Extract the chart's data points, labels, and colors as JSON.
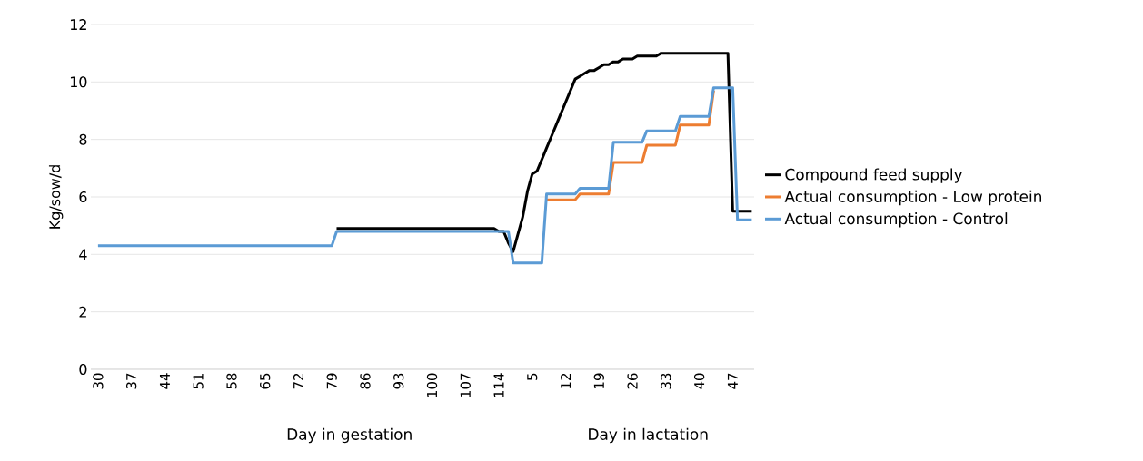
{
  "chart_data": {
    "type": "line",
    "ylabel": "Kg/sow/d",
    "annotations": [
      "Day in gestation",
      "Day in lactation"
    ],
    "categories": [
      "30",
      null,
      null,
      null,
      null,
      null,
      null,
      "37",
      null,
      null,
      null,
      null,
      null,
      null,
      "44",
      null,
      null,
      null,
      null,
      null,
      null,
      "51",
      null,
      null,
      null,
      null,
      null,
      null,
      "58",
      null,
      null,
      null,
      null,
      null,
      null,
      "65",
      null,
      null,
      null,
      null,
      null,
      null,
      "72",
      null,
      null,
      null,
      null,
      null,
      null,
      "79",
      null,
      null,
      null,
      null,
      null,
      null,
      "86",
      null,
      null,
      null,
      null,
      null,
      null,
      "93",
      null,
      null,
      null,
      null,
      null,
      null,
      "100",
      null,
      null,
      null,
      null,
      null,
      null,
      "107",
      null,
      null,
      null,
      null,
      null,
      null,
      "114",
      null,
      null,
      null,
      null,
      null,
      null,
      "5",
      null,
      null,
      null,
      null,
      null,
      null,
      "12",
      null,
      null,
      null,
      null,
      null,
      null,
      "19",
      null,
      null,
      null,
      null,
      null,
      null,
      "26",
      null,
      null,
      null,
      null,
      null,
      null,
      "33",
      null,
      null,
      null,
      null,
      null,
      null,
      "40",
      null,
      null,
      null,
      null,
      null,
      null,
      "47",
      null,
      null,
      null,
      null
    ],
    "ylim": [
      0,
      12
    ],
    "yticks": [
      0,
      2,
      4,
      6,
      8,
      10,
      12
    ],
    "grid": "y",
    "legend": "right",
    "series": [
      {
        "name": "Compound feed supply",
        "color": "#000000",
        "values": [
          null,
          null,
          null,
          null,
          null,
          null,
          null,
          null,
          null,
          null,
          null,
          null,
          null,
          null,
          null,
          null,
          null,
          null,
          null,
          null,
          null,
          null,
          null,
          null,
          null,
          null,
          null,
          null,
          null,
          null,
          null,
          null,
          null,
          null,
          null,
          null,
          null,
          null,
          null,
          null,
          null,
          null,
          null,
          null,
          null,
          null,
          null,
          null,
          null,
          null,
          4.9,
          4.9,
          4.9,
          4.9,
          4.9,
          4.9,
          4.9,
          4.9,
          4.9,
          4.9,
          4.9,
          4.9,
          4.9,
          4.9,
          4.9,
          4.9,
          4.9,
          4.9,
          4.9,
          4.9,
          4.9,
          4.9,
          4.9,
          4.9,
          4.9,
          4.9,
          4.9,
          4.9,
          4.9,
          4.9,
          4.9,
          4.9,
          4.9,
          4.9,
          4.8,
          4.8,
          4.4,
          4.1,
          4.7,
          5.3,
          6.2,
          6.8,
          6.9,
          7.3,
          7.7,
          8.1,
          8.5,
          8.9,
          9.3,
          9.7,
          10.1,
          10.2,
          10.3,
          10.4,
          10.4,
          10.5,
          10.6,
          10.6,
          10.7,
          10.7,
          10.8,
          10.8,
          10.8,
          10.9,
          10.9,
          10.9,
          10.9,
          10.9,
          11.0,
          11.0,
          11.0,
          11.0,
          11.0,
          11.0,
          11.0,
          11.0,
          11.0,
          11.0,
          11.0,
          11.0,
          11.0,
          11.0,
          11.0,
          5.5,
          5.5,
          5.5,
          5.5,
          5.5
        ]
      },
      {
        "name": "Actual consumption - Low protein",
        "color": "#ed7d31",
        "values": [
          null,
          null,
          null,
          null,
          null,
          null,
          null,
          null,
          null,
          null,
          null,
          null,
          null,
          null,
          null,
          null,
          null,
          null,
          null,
          null,
          null,
          null,
          null,
          null,
          null,
          null,
          null,
          null,
          null,
          null,
          null,
          null,
          null,
          null,
          null,
          null,
          null,
          null,
          null,
          null,
          null,
          null,
          null,
          null,
          null,
          null,
          null,
          null,
          null,
          null,
          null,
          null,
          null,
          null,
          null,
          null,
          null,
          null,
          null,
          null,
          null,
          null,
          null,
          null,
          null,
          null,
          null,
          null,
          null,
          null,
          null,
          null,
          null,
          null,
          null,
          null,
          null,
          null,
          null,
          null,
          null,
          null,
          null,
          null,
          null,
          null,
          null,
          null,
          null,
          null,
          null,
          null,
          null,
          null,
          5.9,
          5.9,
          5.9,
          5.9,
          5.9,
          5.9,
          5.9,
          6.1,
          6.1,
          6.1,
          6.1,
          6.1,
          6.1,
          6.1,
          7.2,
          7.2,
          7.2,
          7.2,
          7.2,
          7.2,
          7.2,
          7.8,
          7.8,
          7.8,
          7.8,
          7.8,
          7.8,
          7.8,
          8.5,
          8.5,
          8.5,
          8.5,
          8.5,
          8.5,
          8.5,
          9.7,
          null,
          null,
          null,
          null,
          null,
          null,
          null,
          null
        ]
      },
      {
        "name": "Actual consumption - Control",
        "color": "#5b9bd5",
        "values": [
          4.3,
          4.3,
          4.3,
          4.3,
          4.3,
          4.3,
          4.3,
          4.3,
          4.3,
          4.3,
          4.3,
          4.3,
          4.3,
          4.3,
          4.3,
          4.3,
          4.3,
          4.3,
          4.3,
          4.3,
          4.3,
          4.3,
          4.3,
          4.3,
          4.3,
          4.3,
          4.3,
          4.3,
          4.3,
          4.3,
          4.3,
          4.3,
          4.3,
          4.3,
          4.3,
          4.3,
          4.3,
          4.3,
          4.3,
          4.3,
          4.3,
          4.3,
          4.3,
          4.3,
          4.3,
          4.3,
          4.3,
          4.3,
          4.3,
          4.3,
          4.8,
          4.8,
          4.8,
          4.8,
          4.8,
          4.8,
          4.8,
          4.8,
          4.8,
          4.8,
          4.8,
          4.8,
          4.8,
          4.8,
          4.8,
          4.8,
          4.8,
          4.8,
          4.8,
          4.8,
          4.8,
          4.8,
          4.8,
          4.8,
          4.8,
          4.8,
          4.8,
          4.8,
          4.8,
          4.8,
          4.8,
          4.8,
          4.8,
          4.8,
          4.8,
          4.8,
          4.8,
          3.7,
          3.7,
          3.7,
          3.7,
          3.7,
          3.7,
          3.7,
          6.1,
          6.1,
          6.1,
          6.1,
          6.1,
          6.1,
          6.1,
          6.3,
          6.3,
          6.3,
          6.3,
          6.3,
          6.3,
          6.3,
          7.9,
          7.9,
          7.9,
          7.9,
          7.9,
          7.9,
          7.9,
          8.3,
          8.3,
          8.3,
          8.3,
          8.3,
          8.3,
          8.3,
          8.8,
          8.8,
          8.8,
          8.8,
          8.8,
          8.8,
          8.8,
          9.8,
          9.8,
          9.8,
          9.8,
          9.8,
          5.2,
          5.2,
          5.2,
          5.2
        ]
      }
    ]
  }
}
